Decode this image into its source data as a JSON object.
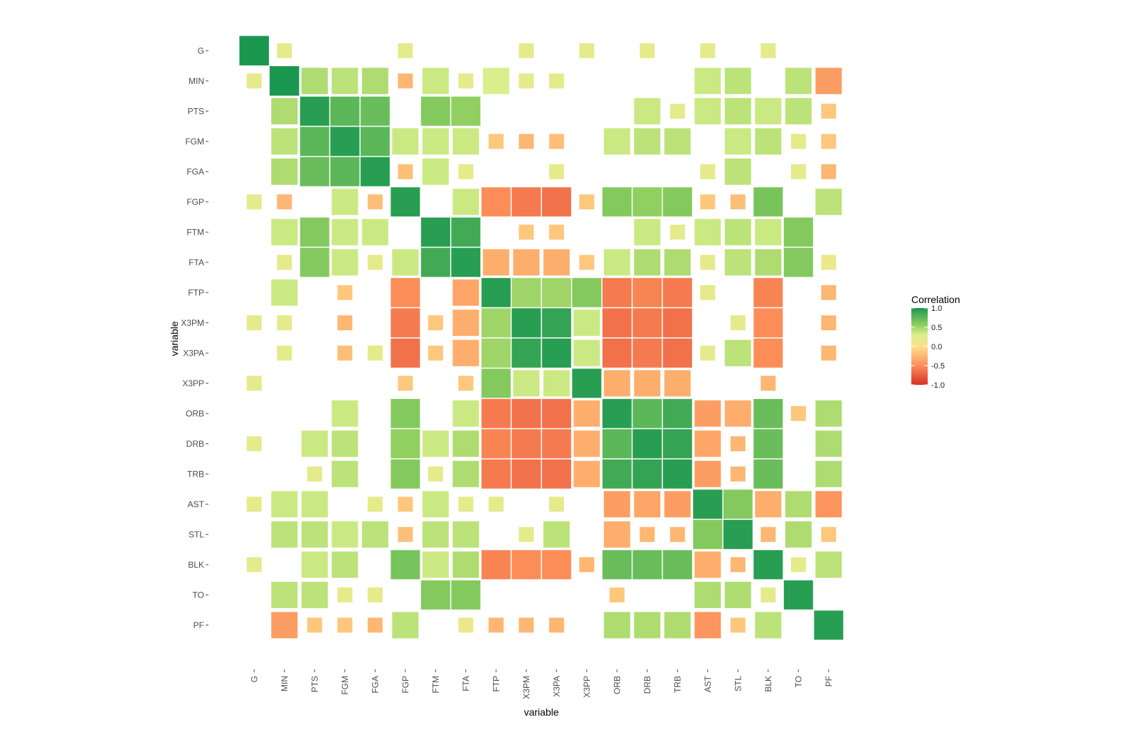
{
  "chart_data": {
    "type": "heatmap",
    "title": "",
    "xlabel": "variable",
    "ylabel": "variable",
    "variables": [
      "G",
      "MIN",
      "PTS",
      "FGM",
      "FGA",
      "FGP",
      "FTM",
      "FTA",
      "FTP",
      "X3PM",
      "X3PA",
      "X3PP",
      "ORB",
      "DRB",
      "TRB",
      "AST",
      "STL",
      "BLK",
      "TO",
      "PF"
    ],
    "encoding": "fill color and square size both encode correlation",
    "legend": {
      "title": "Correlation",
      "position": "right",
      "ticks": [
        1.0,
        0.5,
        0.0,
        -0.5,
        -1.0
      ],
      "tick_labels": [
        "1.0",
        "0.5",
        "0.0",
        "-0.5",
        "-1.0"
      ],
      "colors": [
        "#d73027",
        "#fc8d59",
        "#fee08b",
        "#d9ef8b",
        "#91cf60",
        "#1a9850"
      ]
    },
    "matrix": [
      [
        1.0,
        0.2,
        0.0,
        0.0,
        0.0,
        0.2,
        0.0,
        0.0,
        0.0,
        0.2,
        0.0,
        0.2,
        0.0,
        0.2,
        0.0,
        0.2,
        0.0,
        0.2,
        0.0,
        0.0
      ],
      [
        0.2,
        1.0,
        0.45,
        0.4,
        0.45,
        -0.25,
        0.35,
        0.2,
        0.3,
        0.2,
        0.2,
        0.0,
        0.0,
        0.0,
        0.0,
        0.35,
        0.4,
        0.0,
        0.4,
        -0.4
      ],
      [
        0.0,
        0.45,
        0.95,
        0.75,
        0.7,
        0.0,
        0.6,
        0.55,
        0.0,
        0.0,
        0.0,
        0.0,
        0.0,
        0.35,
        0.2,
        0.35,
        0.4,
        0.35,
        0.4,
        -0.15
      ],
      [
        0.0,
        0.4,
        0.75,
        0.95,
        0.75,
        0.35,
        0.35,
        0.35,
        -0.15,
        -0.25,
        -0.2,
        0.0,
        0.35,
        0.4,
        0.4,
        0.0,
        0.35,
        0.4,
        0.2,
        -0.15
      ],
      [
        0.0,
        0.45,
        0.7,
        0.75,
        0.95,
        -0.2,
        0.35,
        0.2,
        0.0,
        0.0,
        0.2,
        0.0,
        0.0,
        0.0,
        0.0,
        0.2,
        0.4,
        0.0,
        0.2,
        -0.25
      ],
      [
        0.2,
        -0.25,
        0.0,
        0.35,
        -0.2,
        0.95,
        0.0,
        0.35,
        -0.5,
        -0.6,
        -0.65,
        -0.15,
        0.6,
        0.55,
        0.6,
        -0.15,
        -0.2,
        0.65,
        0.0,
        0.4
      ],
      [
        0.0,
        0.35,
        0.6,
        0.35,
        0.35,
        0.0,
        0.95,
        0.85,
        0.0,
        -0.15,
        -0.15,
        0.0,
        0.0,
        0.35,
        0.2,
        0.35,
        0.4,
        0.35,
        0.6,
        0.0
      ],
      [
        0.0,
        0.2,
        0.6,
        0.35,
        0.2,
        0.35,
        0.85,
        0.95,
        -0.3,
        -0.3,
        -0.3,
        -0.15,
        0.35,
        0.45,
        0.45,
        0.2,
        0.4,
        0.45,
        0.6,
        0.15
      ],
      [
        0.0,
        0.35,
        0.0,
        -0.15,
        0.0,
        -0.5,
        0.0,
        -0.35,
        0.95,
        0.5,
        0.5,
        0.6,
        -0.6,
        -0.55,
        -0.6,
        0.2,
        0.0,
        -0.55,
        0.0,
        -0.25
      ],
      [
        0.2,
        0.2,
        0.0,
        -0.25,
        0.0,
        -0.6,
        -0.15,
        -0.3,
        0.5,
        0.95,
        0.9,
        0.35,
        -0.65,
        -0.6,
        -0.65,
        0.0,
        0.2,
        -0.5,
        0.0,
        -0.25
      ],
      [
        0.0,
        0.2,
        0.0,
        -0.2,
        0.2,
        -0.65,
        -0.15,
        -0.3,
        0.5,
        0.9,
        0.95,
        0.35,
        -0.65,
        -0.6,
        -0.65,
        0.2,
        0.4,
        -0.5,
        0.0,
        -0.25
      ],
      [
        0.2,
        0.0,
        0.0,
        0.0,
        0.0,
        -0.15,
        0.0,
        -0.15,
        0.6,
        0.35,
        0.35,
        0.95,
        -0.3,
        -0.3,
        -0.3,
        0.0,
        0.0,
        -0.25,
        0.0,
        0.0
      ],
      [
        0.0,
        0.0,
        0.0,
        0.35,
        0.0,
        0.6,
        0.0,
        0.35,
        -0.6,
        -0.65,
        -0.65,
        -0.3,
        0.95,
        0.75,
        0.85,
        -0.4,
        -0.3,
        0.7,
        -0.15,
        0.45
      ],
      [
        0.2,
        0.0,
        0.35,
        0.4,
        0.0,
        0.55,
        0.35,
        0.45,
        -0.55,
        -0.6,
        -0.6,
        -0.3,
        0.75,
        0.95,
        0.9,
        -0.35,
        -0.25,
        0.7,
        0.0,
        0.45
      ],
      [
        0.0,
        0.0,
        0.2,
        0.4,
        0.0,
        0.6,
        0.2,
        0.45,
        -0.6,
        -0.65,
        -0.65,
        -0.3,
        0.85,
        0.9,
        0.95,
        -0.4,
        -0.25,
        0.7,
        0.0,
        0.45
      ],
      [
        0.2,
        0.35,
        0.35,
        0.0,
        0.2,
        -0.15,
        0.35,
        0.2,
        0.2,
        0.0,
        0.2,
        0.0,
        -0.4,
        -0.35,
        -0.4,
        0.95,
        0.6,
        -0.3,
        0.45,
        -0.45
      ],
      [
        0.0,
        0.4,
        0.4,
        0.35,
        0.4,
        -0.2,
        0.4,
        0.4,
        0.0,
        0.2,
        0.4,
        0.0,
        -0.3,
        -0.25,
        -0.25,
        0.6,
        0.95,
        -0.25,
        0.45,
        -0.15
      ],
      [
        0.2,
        0.0,
        0.35,
        0.4,
        0.0,
        0.65,
        0.35,
        0.45,
        -0.55,
        -0.5,
        -0.5,
        -0.25,
        0.7,
        0.7,
        0.7,
        -0.3,
        -0.25,
        0.95,
        0.2,
        0.4
      ],
      [
        0.0,
        0.4,
        0.4,
        0.2,
        0.2,
        0.0,
        0.6,
        0.6,
        0.0,
        0.0,
        0.0,
        0.0,
        -0.15,
        0.0,
        0.0,
        0.45,
        0.45,
        0.2,
        0.95,
        0.0
      ],
      [
        0.0,
        -0.4,
        -0.15,
        -0.15,
        -0.25,
        0.4,
        0.0,
        0.15,
        -0.25,
        -0.25,
        -0.25,
        0.0,
        0.45,
        0.45,
        0.45,
        -0.45,
        -0.15,
        0.4,
        0.0,
        0.95
      ]
    ]
  }
}
